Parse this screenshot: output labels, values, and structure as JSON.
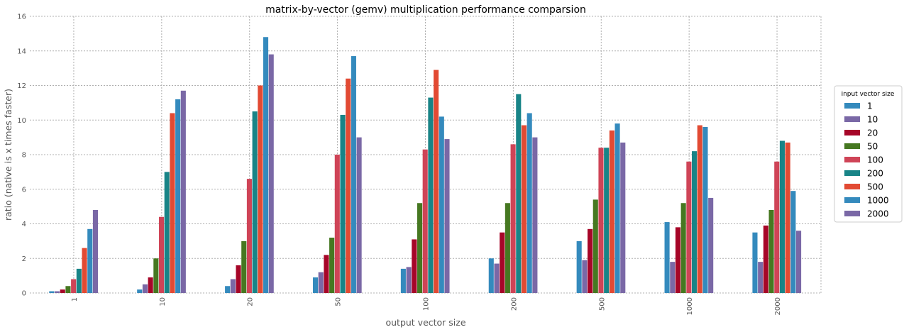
{
  "chart_data": {
    "type": "bar",
    "title": "matrix-by-vector (gemv) multiplication performance comparsion",
    "xlabel": "output vector size",
    "ylabel": "ratio (native is x times faster)",
    "ylim": [
      0,
      16
    ],
    "yticks": [
      "0",
      "2",
      "4",
      "6",
      "8",
      "10",
      "12",
      "14",
      "16"
    ],
    "grid": true,
    "legend": {
      "title": "input vector size",
      "placement": "right-outside"
    },
    "categories": [
      "1",
      "10",
      "20",
      "50",
      "100",
      "200",
      "500",
      "1000",
      "2000"
    ],
    "series": [
      {
        "name": "1",
        "color": "#348ABD",
        "values": [
          0.1,
          0.2,
          0.4,
          0.9,
          1.4,
          2.0,
          3.0,
          4.1,
          3.5
        ]
      },
      {
        "name": "10",
        "color": "#7A68A6",
        "values": [
          0.1,
          0.5,
          0.8,
          1.2,
          1.5,
          1.7,
          1.9,
          1.8,
          1.8
        ]
      },
      {
        "name": "20",
        "color": "#A60628",
        "values": [
          0.2,
          0.9,
          1.6,
          2.2,
          3.1,
          3.5,
          3.7,
          3.8,
          3.9
        ]
      },
      {
        "name": "50",
        "color": "#467821",
        "values": [
          0.4,
          2.0,
          3.0,
          3.2,
          5.2,
          5.2,
          5.4,
          5.2,
          4.8
        ]
      },
      {
        "name": "100",
        "color": "#CF4457",
        "values": [
          0.8,
          4.4,
          6.6,
          8.0,
          8.3,
          8.6,
          8.4,
          7.6,
          7.6
        ]
      },
      {
        "name": "200",
        "color": "#188487",
        "values": [
          1.4,
          7.0,
          10.5,
          10.3,
          11.3,
          11.5,
          8.4,
          8.2,
          8.8
        ]
      },
      {
        "name": "500",
        "color": "#E24A33",
        "values": [
          2.6,
          10.4,
          12.0,
          12.4,
          12.9,
          9.7,
          9.4,
          9.7,
          8.7
        ]
      },
      {
        "name": "1000",
        "color": "#348ABD",
        "values": [
          3.7,
          11.2,
          14.8,
          13.7,
          10.2,
          10.4,
          9.8,
          9.6,
          5.9
        ]
      },
      {
        "name": "2000",
        "color": "#7A68A6",
        "values": [
          4.8,
          11.7,
          13.8,
          9.0,
          8.9,
          9.0,
          8.7,
          5.5,
          3.6
        ]
      }
    ]
  }
}
